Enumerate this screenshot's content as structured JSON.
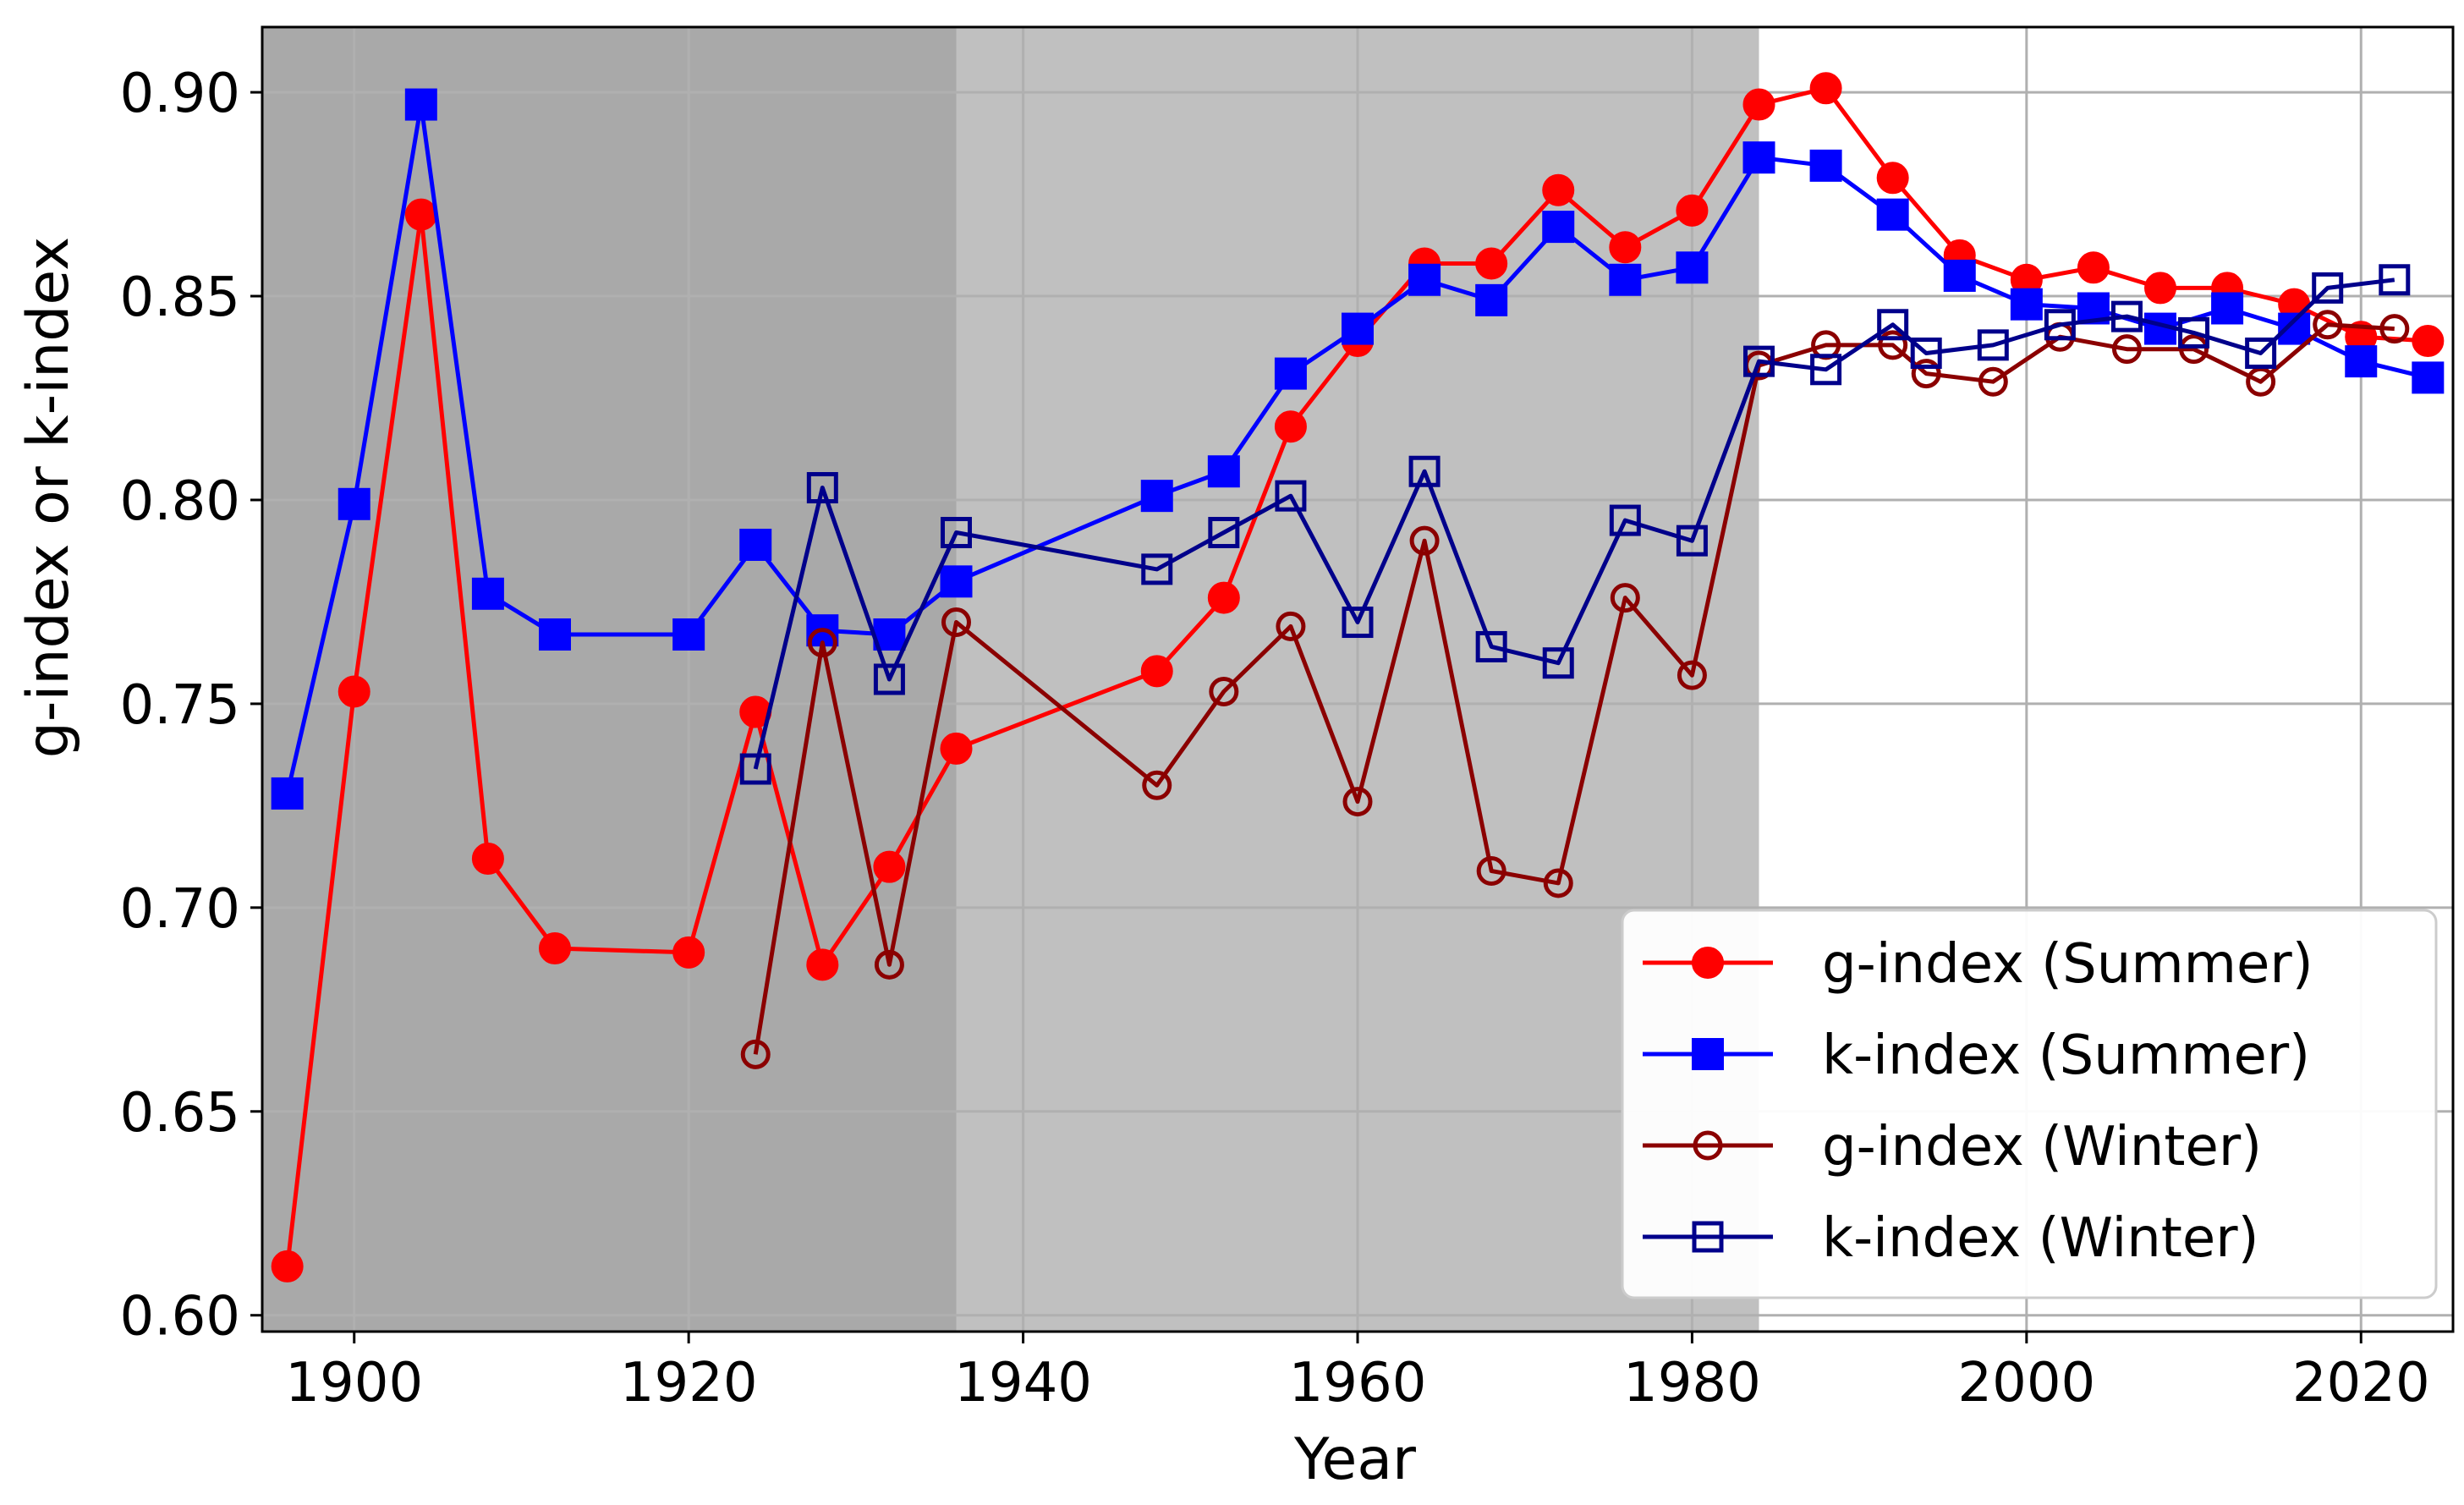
{
  "chart_data": {
    "type": "line",
    "xlabel": "Year",
    "ylabel": "g-index or k-index",
    "xlim": [
      1894.5,
      2025.5
    ],
    "ylim": [
      0.596,
      0.916
    ],
    "xticks": [
      1900,
      1920,
      1940,
      1960,
      1980,
      2000,
      2020
    ],
    "xtick_labels": [
      "1900",
      "1920",
      "1940",
      "1960",
      "1980",
      "2000",
      "2020"
    ],
    "yticks": [
      0.6,
      0.65,
      0.7,
      0.75,
      0.8,
      0.85,
      0.9
    ],
    "ytick_labels": [
      "0.60",
      "0.65",
      "0.70",
      "0.75",
      "0.80",
      "0.85",
      "0.90"
    ],
    "grid": true,
    "legend_position": "lower-right",
    "shaded_periods": [
      {
        "from": 1894.5,
        "to": 1936,
        "color": "#a9a9a9"
      },
      {
        "from": 1936,
        "to": 1984,
        "color": "#c0c0c0"
      }
    ],
    "series": [
      {
        "name": "g-index (Summer)",
        "color": "#ff0000",
        "marker": "circle",
        "filled": true,
        "x": [
          1896,
          1900,
          1904,
          1908,
          1912,
          1920,
          1924,
          1928,
          1932,
          1936,
          1948,
          1952,
          1956,
          1960,
          1964,
          1968,
          1972,
          1976,
          1980,
          1984,
          1988,
          1992,
          1996,
          2000,
          2004,
          2008,
          2012,
          2016,
          2020,
          2024
        ],
        "y": [
          0.612,
          0.753,
          0.87,
          0.712,
          0.69,
          0.689,
          0.748,
          0.686,
          0.71,
          0.739,
          0.758,
          0.776,
          0.818,
          0.839,
          0.858,
          0.858,
          0.876,
          0.862,
          0.871,
          0.897,
          0.901,
          0.879,
          0.86,
          0.854,
          0.857,
          0.852,
          0.852,
          0.848,
          0.84,
          0.839
        ]
      },
      {
        "name": "k-index (Summer)",
        "color": "#0000ff",
        "marker": "square",
        "filled": true,
        "x": [
          1896,
          1900,
          1904,
          1908,
          1912,
          1920,
          1924,
          1928,
          1932,
          1936,
          1948,
          1952,
          1956,
          1960,
          1964,
          1968,
          1972,
          1976,
          1980,
          1984,
          1988,
          1992,
          1996,
          2000,
          2004,
          2008,
          2012,
          2016,
          2020,
          2024
        ],
        "y": [
          0.728,
          0.799,
          0.897,
          0.777,
          0.767,
          0.767,
          0.789,
          0.768,
          0.767,
          0.78,
          0.801,
          0.807,
          0.831,
          0.842,
          0.854,
          0.849,
          0.867,
          0.854,
          0.857,
          0.884,
          0.882,
          0.87,
          0.855,
          0.848,
          0.847,
          0.842,
          0.847,
          0.842,
          0.834,
          0.83
        ]
      },
      {
        "name": "g-index (Winter)",
        "color": "#8b0000",
        "marker": "circle",
        "filled": false,
        "x": [
          1924,
          1928,
          1932,
          1936,
          1948,
          1952,
          1956,
          1960,
          1964,
          1968,
          1972,
          1976,
          1980,
          1984,
          1988,
          1992,
          1994,
          1998,
          2002,
          2006,
          2010,
          2014,
          2018,
          2022
        ],
        "y": [
          0.664,
          0.765,
          0.686,
          0.77,
          0.73,
          0.753,
          0.769,
          0.726,
          0.79,
          0.709,
          0.706,
          0.776,
          0.757,
          0.833,
          0.838,
          0.838,
          0.831,
          0.829,
          0.84,
          0.837,
          0.837,
          0.829,
          0.843,
          0.842
        ]
      },
      {
        "name": "k-index (Winter)",
        "color": "#00008b",
        "marker": "square",
        "filled": false,
        "x": [
          1924,
          1928,
          1932,
          1936,
          1948,
          1952,
          1956,
          1960,
          1964,
          1968,
          1972,
          1976,
          1980,
          1984,
          1988,
          1992,
          1994,
          1998,
          2002,
          2006,
          2010,
          2014,
          2018,
          2022
        ],
        "y": [
          0.734,
          0.803,
          0.756,
          0.792,
          0.783,
          0.792,
          0.801,
          0.77,
          0.807,
          0.764,
          0.76,
          0.795,
          0.79,
          0.834,
          0.832,
          0.843,
          0.836,
          0.838,
          0.843,
          0.845,
          0.841,
          0.836,
          0.852,
          0.854
        ]
      }
    ]
  }
}
